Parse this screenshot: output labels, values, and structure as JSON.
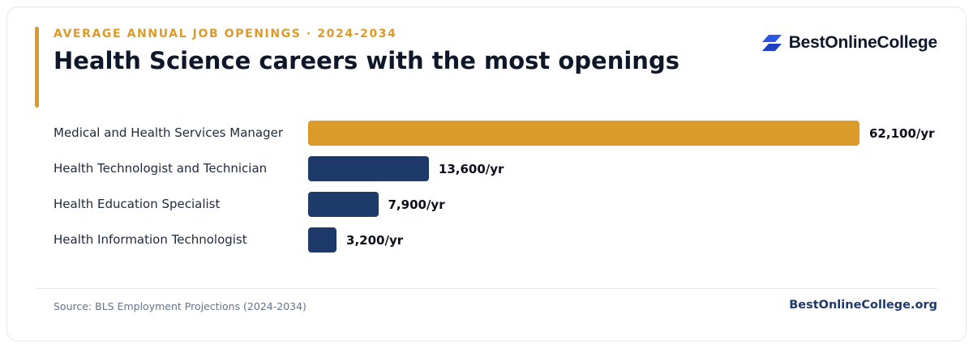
{
  "header": {
    "eyebrow": "AVERAGE ANNUAL JOB OPENINGS · 2024-2034",
    "title": "Health Science careers with the most openings"
  },
  "brand": {
    "name": "BestOnlineCollege",
    "icon": "brand-logo-icon"
  },
  "footer": {
    "source": "Source: BLS Employment Projections (2024-2034)",
    "site": "BestOnlineCollege.org"
  },
  "colors": {
    "accent": "#dc9a28",
    "bar_primary": "#dc9a28",
    "bar_secondary": "#1d3a6b",
    "brand_blue": "#2f55e6"
  },
  "chart_data": {
    "type": "bar",
    "orientation": "horizontal",
    "title": "Health Science careers with the most openings",
    "subtitle": "AVERAGE ANNUAL JOB OPENINGS · 2024-2034",
    "xlabel": "",
    "ylabel": "",
    "xlim": [
      0,
      62100
    ],
    "grid": false,
    "legend": "none",
    "categories": [
      "Medical and Health Services Manager",
      "Health Technologist and Technician",
      "Health Education Specialist",
      "Health Information Technologist"
    ],
    "values": [
      62100,
      13600,
      7900,
      3200
    ],
    "value_labels": [
      "62,100/yr",
      "13,600/yr",
      "7,900/yr",
      "3,200/yr"
    ],
    "highlight": [
      true,
      false,
      false,
      false
    ]
  }
}
